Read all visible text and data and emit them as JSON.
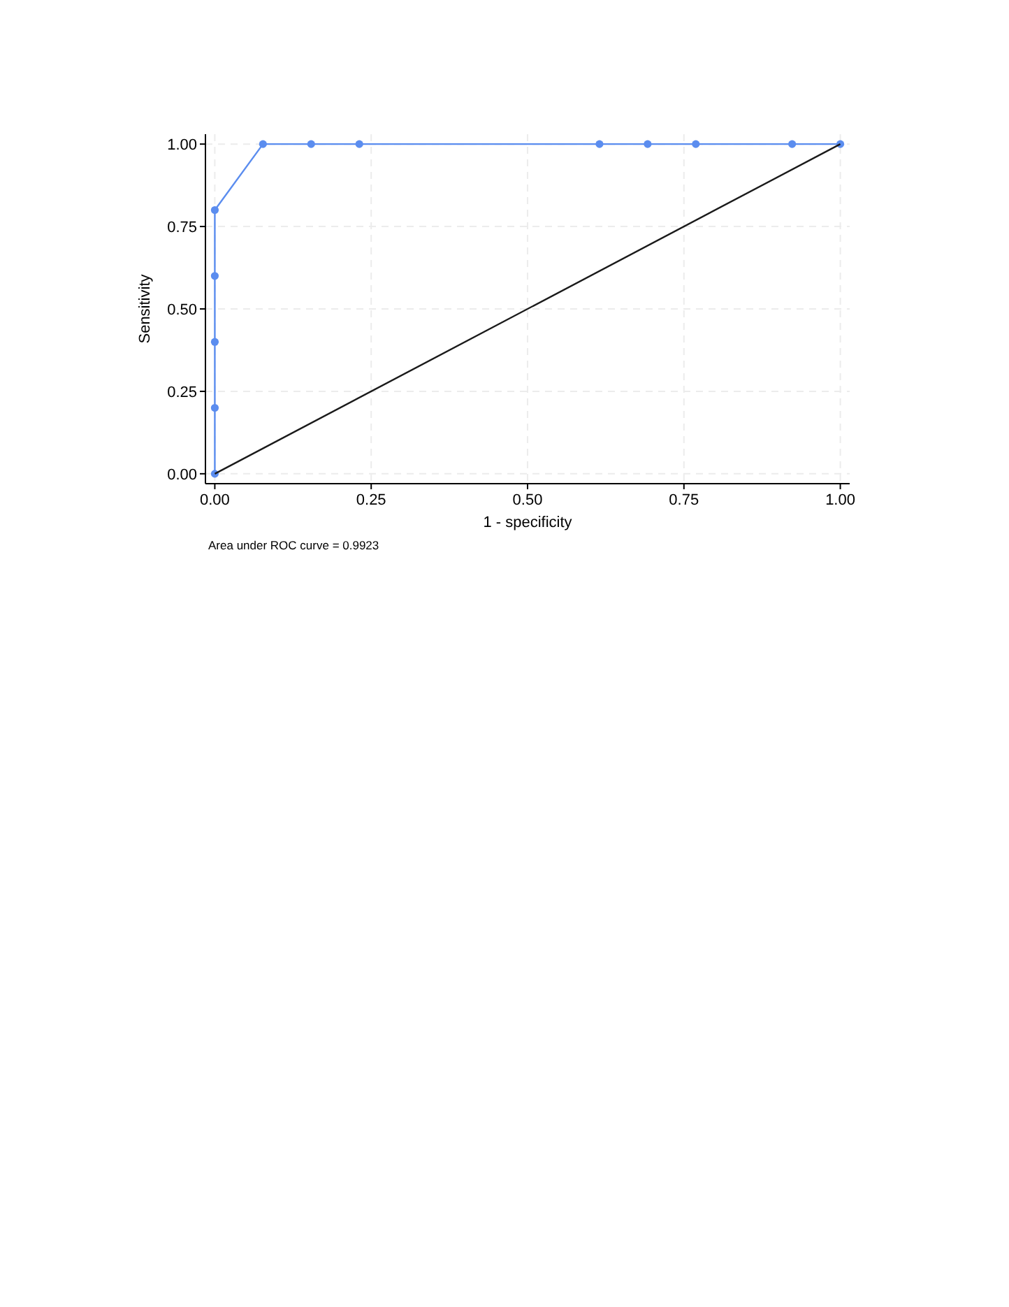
{
  "chart_data": {
    "type": "line",
    "xlabel": "1 - specificity",
    "ylabel": "Sensitivity",
    "xlim": [
      -0.015,
      1.015
    ],
    "ylim": [
      -0.03,
      1.03
    ],
    "xticks": [
      {
        "value": 0,
        "label": "0.00"
      },
      {
        "value": 0.25,
        "label": "0.25"
      },
      {
        "value": 0.5,
        "label": "0.50"
      },
      {
        "value": 0.75,
        "label": "0.75"
      },
      {
        "value": 1,
        "label": "1.00"
      }
    ],
    "yticks": [
      {
        "value": 0,
        "label": "0.00"
      },
      {
        "value": 0.25,
        "label": "0.25"
      },
      {
        "value": 0.5,
        "label": "0.50"
      },
      {
        "value": 0.75,
        "label": "0.75"
      },
      {
        "value": 1,
        "label": "1.00"
      }
    ],
    "grid": true,
    "series": [
      {
        "color": "#5b8def",
        "marker": "circle",
        "x": [
          0,
          0,
          0,
          0,
          0,
          0.077,
          0.154,
          0.231,
          0.615,
          0.692,
          0.769,
          0.923,
          1
        ],
        "values": [
          0,
          0.2,
          0.4,
          0.6,
          0.8,
          1,
          1,
          1,
          1,
          1,
          1,
          1,
          1
        ]
      },
      {
        "color": "#1a1a1a",
        "marker": "none",
        "x": [
          0,
          1
        ],
        "values": [
          0,
          1
        ]
      }
    ],
    "annotations": [
      "Area under ROC curve = 0.9923"
    ]
  }
}
